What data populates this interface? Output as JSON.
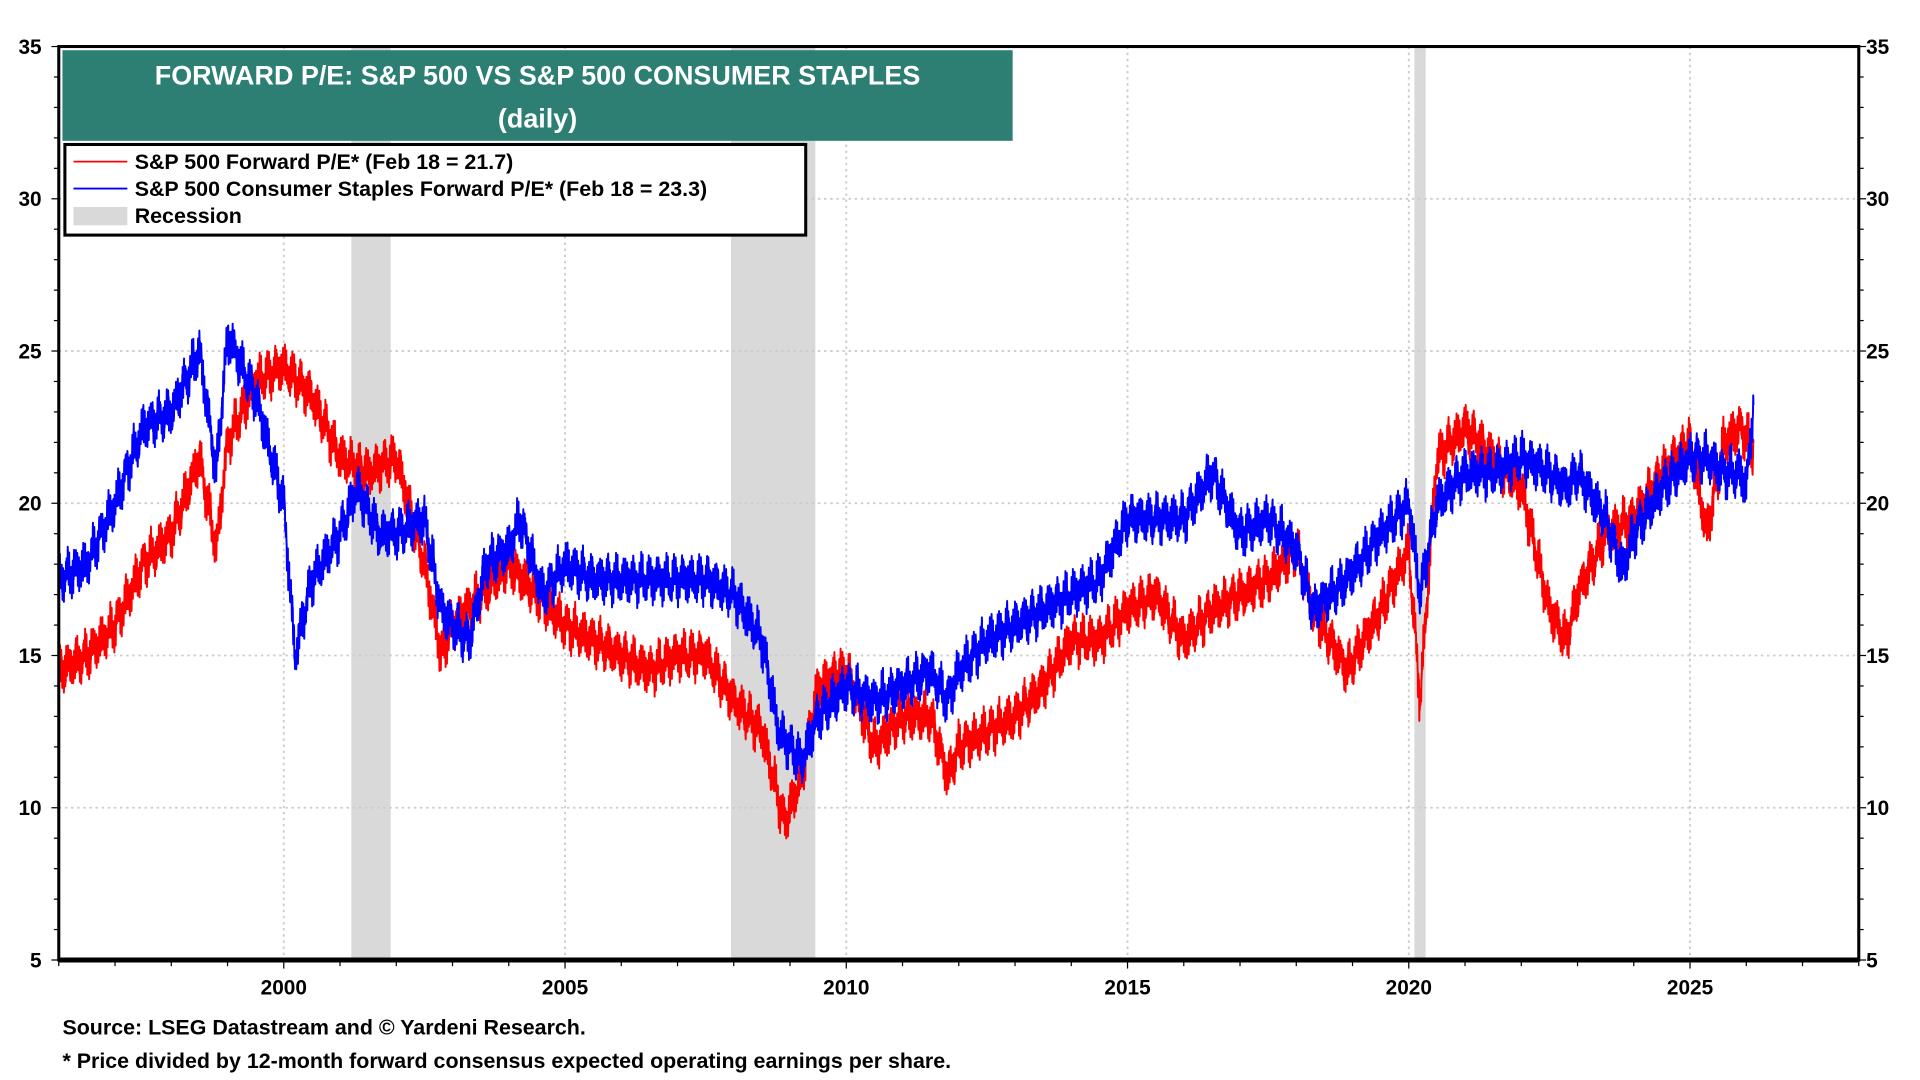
{
  "chart_data": {
    "type": "line",
    "title": "FORWARD P/E: S&P 500 VS S&P 500 CONSUMER STAPLES",
    "subtitle": "(daily)",
    "xlim": [
      1996,
      2028
    ],
    "ylim": [
      5,
      35
    ],
    "y_ticks": [
      "5",
      "10",
      "15",
      "20",
      "25",
      "30",
      "35"
    ],
    "x_ticks": [
      "2000",
      "2005",
      "2010",
      "2015",
      "2020",
      "2025"
    ],
    "grid": true,
    "legend_position": "top-left",
    "legend": [
      "S&P 500 Forward P/E* (Feb 18 = 21.7)",
      "S&P 500 Consumer Staples Forward P/E* (Feb 18 = 23.3)",
      "Recession"
    ],
    "recessions": [
      [
        2001.2,
        2001.9
      ],
      [
        2007.95,
        2009.45
      ],
      [
        2020.1,
        2020.3
      ]
    ],
    "series": [
      {
        "name": "S&P 500 Forward P/E*",
        "color": "#ff0000",
        "x": [
          1996.0,
          1996.5,
          1997.0,
          1997.5,
          1998.0,
          1998.5,
          1998.8,
          1999.0,
          1999.5,
          2000.0,
          2000.5,
          2001.0,
          2001.5,
          2002.0,
          2002.5,
          2002.8,
          2003.0,
          2003.5,
          2004.0,
          2004.5,
          2005.0,
          2005.5,
          2006.0,
          2006.5,
          2007.0,
          2007.5,
          2008.0,
          2008.5,
          2008.9,
          2009.2,
          2009.5,
          2010.0,
          2010.5,
          2011.0,
          2011.5,
          2011.8,
          2012.0,
          2012.5,
          2013.0,
          2013.5,
          2014.0,
          2014.5,
          2015.0,
          2015.5,
          2016.0,
          2016.5,
          2017.0,
          2017.5,
          2018.0,
          2018.3,
          2018.9,
          2019.5,
          2020.0,
          2020.2,
          2020.5,
          2021.0,
          2021.5,
          2022.0,
          2022.5,
          2022.8,
          2023.0,
          2023.5,
          2024.0,
          2024.5,
          2025.0,
          2025.3,
          2025.6,
          2025.9,
          2026.13
        ],
        "y": [
          14.5,
          15,
          16,
          18,
          19,
          21.5,
          18.5,
          22,
          24,
          24.5,
          23.5,
          21.5,
          21,
          21.5,
          18,
          15,
          16,
          17,
          18,
          17,
          16,
          15.5,
          15,
          14.5,
          15,
          15,
          13.5,
          12.5,
          9.5,
          11,
          14,
          14.5,
          12,
          13,
          13,
          11,
          12,
          12.5,
          13,
          14,
          15.5,
          15.5,
          16.5,
          17,
          15.5,
          16.5,
          17,
          17.5,
          18.5,
          16.5,
          14.5,
          16.5,
          18.5,
          13.5,
          21.5,
          22.5,
          21.5,
          20.5,
          16.5,
          15.5,
          17,
          19,
          19.5,
          21,
          22,
          19,
          22,
          22.5,
          21.7
        ]
      },
      {
        "name": "S&P 500 Consumer Staples Forward P/E*",
        "color": "#0000ff",
        "x": [
          1996.0,
          1996.5,
          1997.0,
          1997.5,
          1998.0,
          1998.5,
          1998.8,
          1999.0,
          1999.5,
          2000.0,
          2000.2,
          2000.5,
          2001.0,
          2001.3,
          2001.7,
          2002.0,
          2002.5,
          2002.8,
          2003.0,
          2003.3,
          2003.6,
          2004.0,
          2004.2,
          2004.6,
          2005.0,
          2005.5,
          2006.0,
          2006.5,
          2007.0,
          2007.5,
          2008.0,
          2008.5,
          2008.8,
          2009.2,
          2009.5,
          2010.0,
          2010.5,
          2011.0,
          2011.5,
          2011.8,
          2012.0,
          2012.5,
          2013.0,
          2013.5,
          2014.0,
          2014.5,
          2015.0,
          2015.5,
          2016.0,
          2016.5,
          2017.0,
          2017.5,
          2018.0,
          2018.3,
          2018.6,
          2018.9,
          2019.5,
          2020.0,
          2020.2,
          2020.5,
          2021.0,
          2021.5,
          2022.0,
          2022.5,
          2022.8,
          2023.0,
          2023.5,
          2023.8,
          2024.0,
          2024.5,
          2025.0,
          2025.3,
          2025.6,
          2025.9,
          2026.0,
          2026.13
        ],
        "y": [
          17.5,
          18,
          20,
          22.5,
          23,
          25,
          21,
          25.5,
          23.5,
          20,
          15,
          17.5,
          19,
          20.5,
          19,
          19,
          19.5,
          16.5,
          16,
          15.5,
          18,
          18.5,
          19.5,
          17,
          18,
          17.5,
          17.5,
          17.5,
          17.5,
          17.5,
          17,
          15.5,
          12.5,
          11.5,
          13,
          14,
          13.5,
          14,
          14.5,
          13.5,
          14.5,
          15.5,
          16,
          16.5,
          17,
          17.5,
          19.5,
          19.5,
          19.5,
          21,
          19,
          19.5,
          18.5,
          16.5,
          17,
          17.5,
          19,
          20,
          17,
          20,
          21,
          21,
          21.5,
          21,
          20.5,
          21,
          19.5,
          17.8,
          19,
          20.5,
          21.5,
          21.5,
          21,
          21,
          20.5,
          23.3
        ]
      }
    ]
  },
  "footer": {
    "source": "Source: LSEG Datastream and © Yardeni Research.",
    "note": "* Price divided by 12-month forward consensus expected operating earnings per share."
  },
  "colors": {
    "title_bg": "#2e7f73",
    "recession": "#d9d9d9",
    "grid": "#cccccc"
  }
}
